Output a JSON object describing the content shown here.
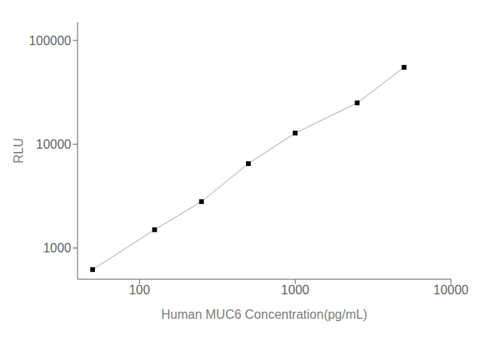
{
  "chart_data": {
    "type": "line",
    "x": [
      50,
      125,
      250,
      500,
      1000,
      2500,
      5000
    ],
    "values": [
      620,
      1500,
      2800,
      6500,
      12800,
      25000,
      55000
    ],
    "xlabel": "Human MUC6 Concentration(pg/mL)",
    "ylabel": "RLU",
    "xlim": [
      40,
      10000
    ],
    "ylim": [
      500,
      150000
    ],
    "xticks": [
      100,
      1000,
      10000
    ],
    "yticks": [
      1000,
      10000,
      100000
    ],
    "log": true,
    "grid": false,
    "color": "#aaaaaa",
    "colors": [
      "#000000",
      "#000000",
      "#000000",
      "#000000",
      "#000000",
      "#000000",
      "#000000"
    ],
    "marker": "square",
    "line_style": "solid"
  }
}
